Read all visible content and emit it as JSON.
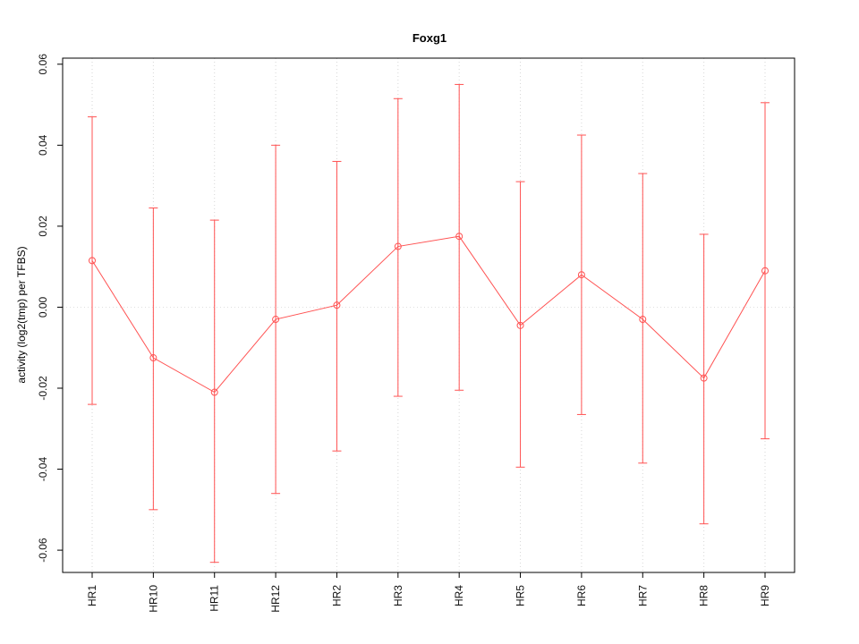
{
  "chart_data": {
    "type": "line",
    "title": "Foxg1",
    "xlabel": "",
    "ylabel": "activity (log2(tmp) per TFBS)",
    "categories": [
      "HR1",
      "HR10",
      "HR11",
      "HR12",
      "HR2",
      "HR3",
      "HR4",
      "HR5",
      "HR6",
      "HR7",
      "HR8",
      "HR9"
    ],
    "series": [
      {
        "name": "activity",
        "values": [
          0.0115,
          -0.0125,
          -0.021,
          -0.003,
          0.0005,
          0.015,
          0.0175,
          -0.0045,
          0.008,
          -0.003,
          -0.0175,
          0.009
        ],
        "upper": [
          0.047,
          0.0245,
          0.0215,
          0.04,
          0.036,
          0.0515,
          0.055,
          0.031,
          0.0425,
          0.033,
          0.018,
          0.0505
        ],
        "lower": [
          -0.024,
          -0.05,
          -0.063,
          -0.046,
          -0.0355,
          -0.022,
          -0.0205,
          -0.0395,
          -0.0265,
          -0.0385,
          -0.0535,
          -0.0325
        ]
      }
    ],
    "yticks": [
      -0.06,
      -0.04,
      -0.02,
      0.0,
      0.02,
      0.04,
      0.06
    ],
    "ylim": [
      -0.0655,
      0.0615
    ],
    "grid": "dotted vertical gridline at each category, dotted horizontal line at zero",
    "legend": "none",
    "colors": {
      "series": "#ff5252",
      "grid": "#d6d6d6",
      "zero_line": "#e0e0e0",
      "axis": "#000000",
      "text": "#111111"
    }
  }
}
